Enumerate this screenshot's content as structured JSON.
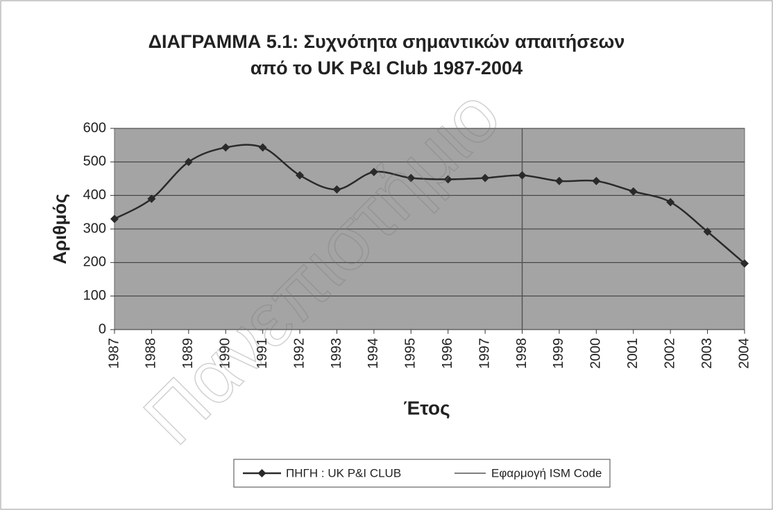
{
  "chart_data": {
    "type": "line",
    "title": [
      "ΔΙΑΓΡΑΜΜΑ 5.1:  Συχνότητα σημαντικών απαιτήσεων",
      "από το UK P&I Club 1987-2004"
    ],
    "watermark": "Πανεπιστήμιο",
    "x_label": "Έτος",
    "y_label": "Αριθμός",
    "categories": [
      "1987",
      "1988",
      "1989",
      "1990",
      "1991",
      "1992",
      "1993",
      "1994",
      "1995",
      "1996",
      "1997",
      "1998",
      "1999",
      "2000",
      "2001",
      "2002",
      "2003",
      "2004"
    ],
    "series": [
      {
        "name": "ΠΗΓΗ : UK P&I CLUB",
        "color": "#2a2a2a",
        "values": [
          330,
          390,
          500,
          543,
          543,
          460,
          418,
          470,
          452,
          448,
          452,
          460,
          443,
          443,
          412,
          380,
          292,
          197
        ]
      }
    ],
    "reference_line": {
      "name": "Εφαρμογή ISM Code",
      "at": "1998",
      "color": "#555555"
    },
    "ylim": [
      0,
      600
    ],
    "yticks": [
      0,
      100,
      200,
      300,
      400,
      500,
      600
    ],
    "grid": true,
    "smooth": true,
    "legend": "bottom"
  }
}
